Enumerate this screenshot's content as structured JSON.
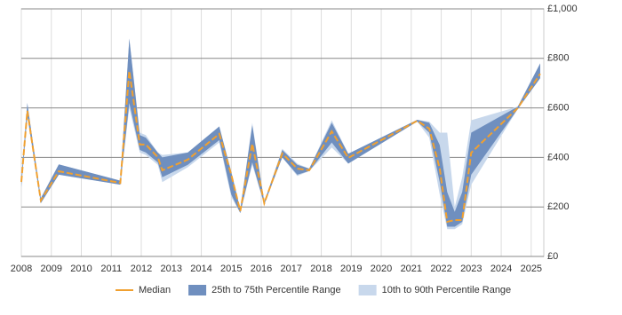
{
  "chart_data": {
    "type": "line",
    "x": [
      2008.0,
      2008.2,
      2008.65,
      2009.25,
      2011.3,
      2011.6,
      2011.95,
      2012.15,
      2012.55,
      2012.7,
      2013.55,
      2014.6,
      2015.0,
      2015.3,
      2015.7,
      2016.1,
      2016.7,
      2017.2,
      2017.6,
      2018.35,
      2018.9,
      2021.2,
      2021.6,
      2021.95,
      2022.2,
      2022.45,
      2022.7,
      2023.0,
      2024.55,
      2025.3
    ],
    "series": [
      {
        "name": "Median",
        "color": "#f0a030",
        "values": [
          301,
          588,
          226,
          344,
          297,
          749,
          452,
          452,
          401,
          348,
          391,
          495,
          330,
          183,
          455,
          215,
          416,
          355,
          348,
          505,
          398,
          548,
          516,
          355,
          140,
          147,
          147,
          419,
          599,
          738
        ]
      }
    ],
    "bands": [
      {
        "name": "10th to 90th Percentile Range",
        "color": "#c8d8ec",
        "low": [
          280,
          570,
          215,
          330,
          290,
          600,
          420,
          410,
          370,
          300,
          360,
          460,
          240,
          175,
          370,
          210,
          400,
          325,
          345,
          440,
          375,
          545,
          480,
          250,
          110,
          110,
          130,
          290,
          595,
          720
        ],
        "high": [
          310,
          620,
          235,
          372,
          306,
          880,
          500,
          490,
          420,
          410,
          420,
          525,
          345,
          190,
          540,
          220,
          435,
          375,
          355,
          550,
          415,
          552,
          545,
          500,
          500,
          200,
          320,
          550,
          605,
          780
        ]
      },
      {
        "name": "25th to 75th Percentile Range",
        "color": "#6f8fbf",
        "low": [
          280,
          570,
          215,
          330,
          290,
          620,
          430,
          420,
          380,
          320,
          370,
          470,
          250,
          175,
          380,
          210,
          400,
          330,
          345,
          460,
          375,
          545,
          500,
          300,
          120,
          120,
          140,
          330,
          595,
          720
        ],
        "high": [
          310,
          620,
          235,
          372,
          306,
          880,
          490,
          480,
          420,
          400,
          420,
          525,
          340,
          190,
          530,
          220,
          430,
          370,
          355,
          540,
          415,
          552,
          540,
          450,
          260,
          180,
          260,
          500,
          605,
          780
        ]
      }
    ],
    "legend_order": [
      "Median",
      "25th to 75th Percentile Range",
      "10th to 90th Percentile Range"
    ],
    "xlim": [
      2008,
      2025.42
    ],
    "xticks": [
      2008,
      2009,
      2010,
      2011,
      2012,
      2013,
      2014,
      2015,
      2016,
      2017,
      2018,
      2019,
      2020,
      2021,
      2022,
      2023,
      2024,
      2025
    ],
    "ylim": [
      0,
      1000
    ],
    "yticks": [
      {
        "value": 0,
        "label": "£0"
      },
      {
        "value": 200,
        "label": "£200"
      },
      {
        "value": 400,
        "label": "£400"
      },
      {
        "value": 600,
        "label": "£600"
      },
      {
        "value": 800,
        "label": "£800"
      },
      {
        "value": 1000,
        "label": "£1,000"
      }
    ],
    "grid": true
  }
}
